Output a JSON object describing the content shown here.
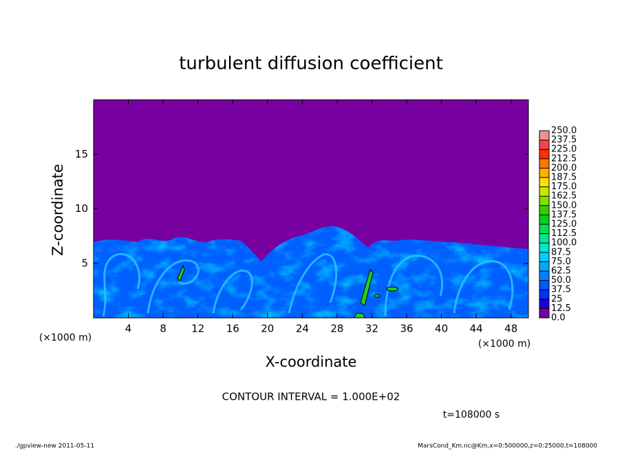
{
  "chart_data": {
    "type": "heatmap",
    "title": "turbulent diffusion coefficient",
    "x_label": "X-coordinate",
    "y_label": "Z-coordinate",
    "x_unit_label": "(×1000 m)",
    "x_unit_label_right": "(×1000 m)",
    "xlim": [
      0,
      50
    ],
    "ylim": [
      0,
      20
    ],
    "xticks": [
      4,
      8,
      12,
      16,
      20,
      24,
      28,
      32,
      36,
      40,
      44,
      48
    ],
    "yticks": [
      5,
      10,
      15
    ],
    "colorbar": {
      "levels": [
        {
          "value": 0,
          "label": "0.0"
        },
        12.5,
        25,
        37.5,
        {
          "value": 50,
          "label": "50.0"
        },
        62.5,
        {
          "value": 75,
          "label": "75.0"
        },
        87.5,
        {
          "value": 100,
          "label": "100.0"
        },
        112.5,
        {
          "value": 125,
          "label": "125.0"
        },
        137.5,
        {
          "value": 150,
          "label": "150.0"
        },
        162.5,
        {
          "value": 175,
          "label": "175.0"
        },
        187.5,
        {
          "value": 200,
          "label": "200.0"
        },
        212.5,
        {
          "value": 225,
          "label": "225.0"
        },
        237.5,
        {
          "value": 250,
          "label": "250.0"
        }
      ],
      "colors": [
        "#7800a0",
        "#2000d8",
        "#0030ff",
        "#0058ff",
        "#0080ff",
        "#00a8ff",
        "#00d0f8",
        "#00e8d0",
        "#00e890",
        "#00e050",
        "#00d020",
        "#30d000",
        "#80e000",
        "#c8e800",
        "#ffe000",
        "#ffb000",
        "#ff7800",
        "#ff3000",
        "#f04848",
        "#f09090"
      ]
    },
    "contour_interval": "CONTOUR INTERVAL = 1.000E+02",
    "time_label": "t=108000 s",
    "footer_left": "./gpview-new  2011-05-11",
    "footer_right": "MarsCond_Km.nc@Km,x=0:500000,z=0:25000,t=108000"
  }
}
